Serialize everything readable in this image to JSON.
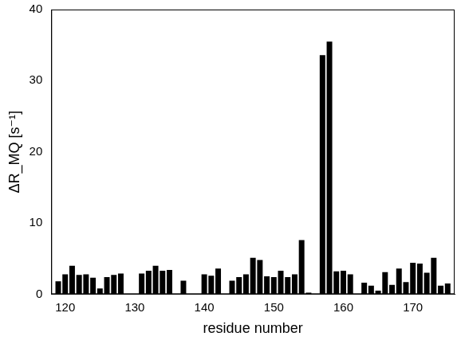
{
  "chart_data": {
    "type": "bar",
    "x_label": "residue number",
    "y_label": "ΔR_MQ [s⁻¹]",
    "x": [
      119,
      120,
      121,
      122,
      123,
      124,
      125,
      126,
      127,
      128,
      129,
      130,
      131,
      132,
      133,
      134,
      135,
      136,
      137,
      138,
      139,
      140,
      141,
      142,
      143,
      144,
      145,
      146,
      147,
      148,
      149,
      150,
      151,
      152,
      153,
      154,
      155,
      156,
      157,
      158,
      159,
      160,
      161,
      162,
      163,
      164,
      165,
      166,
      167,
      168,
      169,
      170,
      171,
      172,
      173,
      174,
      175
    ],
    "values": [
      1.8,
      2.8,
      4.0,
      2.7,
      2.8,
      2.3,
      0.8,
      2.4,
      2.7,
      2.9,
      null,
      null,
      2.9,
      3.3,
      4.0,
      3.3,
      3.4,
      null,
      1.9,
      null,
      null,
      2.8,
      2.6,
      3.6,
      null,
      1.9,
      2.4,
      2.8,
      5.1,
      4.8,
      2.5,
      2.4,
      3.3,
      2.4,
      2.8,
      7.6,
      0.2,
      null,
      33.6,
      35.5,
      3.2,
      3.3,
      2.8,
      null,
      1.6,
      1.2,
      0.5,
      3.1,
      1.3,
      3.6,
      1.7,
      4.4,
      4.3,
      3.0,
      5.1,
      1.2,
      1.5
    ],
    "color": "#000000",
    "xlim": [
      118,
      176
    ],
    "xticks": [
      120,
      130,
      140,
      150,
      160,
      170
    ],
    "ylim": [
      0,
      40
    ],
    "yticks": [
      0,
      10,
      20,
      30,
      40
    ],
    "grid": false
  }
}
